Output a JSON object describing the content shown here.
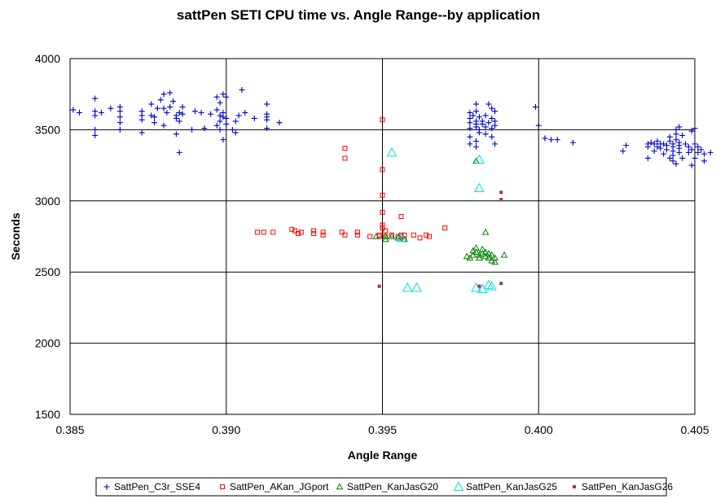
{
  "chart_data": {
    "type": "scatter",
    "title": "sattPen SETI CPU time vs. Angle Range--by application",
    "xlabel": "Angle Range",
    "ylabel": "Seconds",
    "xlim": [
      0.385,
      0.405
    ],
    "ylim": [
      1500,
      4000
    ],
    "xticks": [
      0.385,
      0.39,
      0.395,
      0.4,
      0.405
    ],
    "xtick_labels": [
      "0.385",
      "0.390",
      "0.395",
      "0.400",
      "0.405"
    ],
    "yticks": [
      1500,
      2000,
      2500,
      3000,
      3500,
      4000
    ],
    "ytick_labels": [
      "1500",
      "2000",
      "2500",
      "3000",
      "3500",
      "4000"
    ],
    "grid": "major gridlines on both axes",
    "legend_position": "bottom",
    "series": [
      {
        "name": "SattPen_C3r_SSE4",
        "marker": "plus",
        "color": "#0000cc",
        "points": [
          [
            0.3851,
            3640
          ],
          [
            0.3853,
            3620
          ],
          [
            0.3858,
            3720
          ],
          [
            0.3858,
            3630
          ],
          [
            0.3858,
            3600
          ],
          [
            0.3858,
            3500
          ],
          [
            0.3858,
            3460
          ],
          [
            0.386,
            3620
          ],
          [
            0.3863,
            3650
          ],
          [
            0.3866,
            3660
          ],
          [
            0.3866,
            3630
          ],
          [
            0.3866,
            3590
          ],
          [
            0.3866,
            3550
          ],
          [
            0.3866,
            3500
          ],
          [
            0.3873,
            3630
          ],
          [
            0.3873,
            3600
          ],
          [
            0.3873,
            3570
          ],
          [
            0.3873,
            3480
          ],
          [
            0.3876,
            3600
          ],
          [
            0.3876,
            3680
          ],
          [
            0.3877,
            3550
          ],
          [
            0.3877,
            3590
          ],
          [
            0.3878,
            3650
          ],
          [
            0.3879,
            3710
          ],
          [
            0.388,
            3750
          ],
          [
            0.388,
            3650
          ],
          [
            0.388,
            3530
          ],
          [
            0.3881,
            3620
          ],
          [
            0.3882,
            3760
          ],
          [
            0.3882,
            3660
          ],
          [
            0.3883,
            3700
          ],
          [
            0.3884,
            3580
          ],
          [
            0.3884,
            3470
          ],
          [
            0.3884,
            3600
          ],
          [
            0.3885,
            3620
          ],
          [
            0.3885,
            3560
          ],
          [
            0.3885,
            3340
          ],
          [
            0.3886,
            3610
          ],
          [
            0.3886,
            3660
          ],
          [
            0.3889,
            3500
          ],
          [
            0.389,
            3630
          ],
          [
            0.3892,
            3620
          ],
          [
            0.3893,
            3510
          ],
          [
            0.3895,
            3610
          ],
          [
            0.3897,
            3530
          ],
          [
            0.3897,
            3640
          ],
          [
            0.3897,
            3730
          ],
          [
            0.3898,
            3690
          ],
          [
            0.3898,
            3600
          ],
          [
            0.3898,
            3560
          ],
          [
            0.3898,
            3500
          ],
          [
            0.3899,
            3750
          ],
          [
            0.3899,
            3620
          ],
          [
            0.3899,
            3590
          ],
          [
            0.3899,
            3430
          ],
          [
            0.39,
            3730
          ],
          [
            0.39,
            3580
          ],
          [
            0.39,
            3540
          ],
          [
            0.3902,
            3500
          ],
          [
            0.3903,
            3560
          ],
          [
            0.3903,
            3480
          ],
          [
            0.3904,
            3600
          ],
          [
            0.3905,
            3780
          ],
          [
            0.3906,
            3620
          ],
          [
            0.3909,
            3580
          ],
          [
            0.3913,
            3680
          ],
          [
            0.3913,
            3610
          ],
          [
            0.3913,
            3590
          ],
          [
            0.3913,
            3570
          ],
          [
            0.3913,
            3510
          ],
          [
            0.3917,
            3550
          ],
          [
            0.3978,
            3620
          ],
          [
            0.3978,
            3580
          ],
          [
            0.3978,
            3550
          ],
          [
            0.3978,
            3510
          ],
          [
            0.3978,
            3450
          ],
          [
            0.3978,
            3400
          ],
          [
            0.3979,
            3600
          ],
          [
            0.398,
            3680
          ],
          [
            0.398,
            3630
          ],
          [
            0.398,
            3560
          ],
          [
            0.398,
            3540
          ],
          [
            0.398,
            3520
          ],
          [
            0.398,
            3420
          ],
          [
            0.398,
            3380
          ],
          [
            0.3981,
            3590
          ],
          [
            0.3981,
            3500
          ],
          [
            0.3981,
            3480
          ],
          [
            0.3982,
            3560
          ],
          [
            0.3982,
            3540
          ],
          [
            0.3983,
            3600
          ],
          [
            0.3983,
            3470
          ],
          [
            0.3983,
            3520
          ],
          [
            0.3984,
            3680
          ],
          [
            0.3984,
            3550
          ],
          [
            0.3985,
            3650
          ],
          [
            0.3985,
            3580
          ],
          [
            0.3985,
            3510
          ],
          [
            0.3985,
            3450
          ],
          [
            0.3986,
            3630
          ],
          [
            0.3986,
            3560
          ],
          [
            0.3986,
            3530
          ],
          [
            0.3986,
            3400
          ],
          [
            0.3999,
            3660
          ],
          [
            0.4,
            3530
          ],
          [
            0.4002,
            3440
          ],
          [
            0.4004,
            3430
          ],
          [
            0.4006,
            3430
          ],
          [
            0.4011,
            3410
          ],
          [
            0.4027,
            3350
          ],
          [
            0.4028,
            3390
          ],
          [
            0.4035,
            3400
          ],
          [
            0.4035,
            3380
          ],
          [
            0.4035,
            3300
          ],
          [
            0.4036,
            3410
          ],
          [
            0.4037,
            3400
          ],
          [
            0.4037,
            3350
          ],
          [
            0.4038,
            3420
          ],
          [
            0.4038,
            3380
          ],
          [
            0.4039,
            3400
          ],
          [
            0.4039,
            3370
          ],
          [
            0.404,
            3400
          ],
          [
            0.404,
            3330
          ],
          [
            0.4041,
            3390
          ],
          [
            0.4041,
            3360
          ],
          [
            0.4042,
            3450
          ],
          [
            0.4042,
            3420
          ],
          [
            0.4042,
            3300
          ],
          [
            0.4043,
            3400
          ],
          [
            0.4043,
            3380
          ],
          [
            0.4043,
            3350
          ],
          [
            0.4043,
            3320
          ],
          [
            0.4043,
            3280
          ],
          [
            0.4044,
            3500
          ],
          [
            0.4044,
            3470
          ],
          [
            0.4044,
            3430
          ],
          [
            0.4044,
            3260
          ],
          [
            0.4045,
            3520
          ],
          [
            0.4045,
            3410
          ],
          [
            0.4045,
            3390
          ],
          [
            0.4045,
            3370
          ],
          [
            0.4045,
            3340
          ],
          [
            0.4046,
            3460
          ],
          [
            0.4046,
            3300
          ],
          [
            0.4047,
            3400
          ],
          [
            0.4048,
            3340
          ],
          [
            0.4048,
            3380
          ],
          [
            0.4049,
            3490
          ],
          [
            0.4049,
            3360
          ],
          [
            0.4049,
            3250
          ],
          [
            0.405,
            3510
          ],
          [
            0.405,
            3400
          ],
          [
            0.405,
            3300
          ],
          [
            0.4051,
            3380
          ],
          [
            0.4051,
            3340
          ],
          [
            0.4052,
            3360
          ],
          [
            0.4053,
            3330
          ],
          [
            0.4053,
            3280
          ],
          [
            0.4055,
            3340
          ]
        ]
      },
      {
        "name": "SattPen_AKan_JGport",
        "marker": "square-open",
        "color": "#ff0000",
        "points": [
          [
            0.391,
            2780
          ],
          [
            0.3912,
            2780
          ],
          [
            0.3915,
            2780
          ],
          [
            0.3921,
            2800
          ],
          [
            0.3922,
            2790
          ],
          [
            0.3923,
            2770
          ],
          [
            0.3924,
            2780
          ],
          [
            0.3928,
            2790
          ],
          [
            0.3928,
            2770
          ],
          [
            0.3931,
            2780
          ],
          [
            0.3931,
            2760
          ],
          [
            0.3937,
            2780
          ],
          [
            0.3938,
            2760
          ],
          [
            0.3938,
            3370
          ],
          [
            0.3938,
            3300
          ],
          [
            0.3942,
            2780
          ],
          [
            0.3942,
            2760
          ],
          [
            0.3946,
            2750
          ],
          [
            0.3949,
            2760
          ],
          [
            0.3949,
            2750
          ],
          [
            0.395,
            3570
          ],
          [
            0.395,
            3220
          ],
          [
            0.395,
            3040
          ],
          [
            0.395,
            2920
          ],
          [
            0.395,
            2830
          ],
          [
            0.395,
            2810
          ],
          [
            0.3951,
            2790
          ],
          [
            0.3951,
            2750
          ],
          [
            0.3953,
            2760
          ],
          [
            0.3955,
            2750
          ],
          [
            0.3956,
            2760
          ],
          [
            0.3956,
            2890
          ],
          [
            0.3957,
            2760
          ],
          [
            0.3957,
            2730
          ],
          [
            0.396,
            2760
          ],
          [
            0.3962,
            2740
          ],
          [
            0.3964,
            2760
          ],
          [
            0.3965,
            2750
          ],
          [
            0.397,
            2810
          ]
        ]
      },
      {
        "name": "SattPen_KanJasG20",
        "marker": "triangle-open",
        "color": "#008000",
        "points": [
          [
            0.3948,
            2750
          ],
          [
            0.3951,
            2750
          ],
          [
            0.3951,
            2730
          ],
          [
            0.3953,
            2750
          ],
          [
            0.3955,
            2740
          ],
          [
            0.3956,
            2750
          ],
          [
            0.3957,
            2730
          ],
          [
            0.3977,
            2610
          ],
          [
            0.3978,
            2600
          ],
          [
            0.3979,
            2650
          ],
          [
            0.3979,
            2620
          ],
          [
            0.398,
            2670
          ],
          [
            0.398,
            2640
          ],
          [
            0.398,
            3280
          ],
          [
            0.3981,
            2620
          ],
          [
            0.3981,
            2600
          ],
          [
            0.3982,
            2660
          ],
          [
            0.3982,
            2630
          ],
          [
            0.3983,
            2640
          ],
          [
            0.3983,
            2610
          ],
          [
            0.3983,
            2780
          ],
          [
            0.3984,
            2630
          ],
          [
            0.3984,
            2600
          ],
          [
            0.3985,
            2580
          ],
          [
            0.3985,
            2620
          ],
          [
            0.3986,
            2600
          ],
          [
            0.3986,
            2570
          ],
          [
            0.3989,
            2620
          ]
        ]
      },
      {
        "name": "SattPen_KanJasG25",
        "marker": "triangle-open",
        "color": "#00dddd",
        "points": [
          [
            0.3953,
            3340
          ],
          [
            0.3956,
            2740
          ],
          [
            0.3958,
            2390
          ],
          [
            0.3961,
            2390
          ],
          [
            0.398,
            2390
          ],
          [
            0.3981,
            3090
          ],
          [
            0.3981,
            3290
          ],
          [
            0.3982,
            2380
          ],
          [
            0.3984,
            2410
          ],
          [
            0.3985,
            2400
          ]
        ]
      },
      {
        "name": "SattPen_KanJasG26",
        "marker": "square-filled",
        "color": "#993366",
        "points": [
          [
            0.3949,
            2400
          ],
          [
            0.3981,
            2400
          ],
          [
            0.3988,
            3060
          ],
          [
            0.3988,
            3010
          ],
          [
            0.3988,
            2420
          ]
        ]
      }
    ]
  }
}
